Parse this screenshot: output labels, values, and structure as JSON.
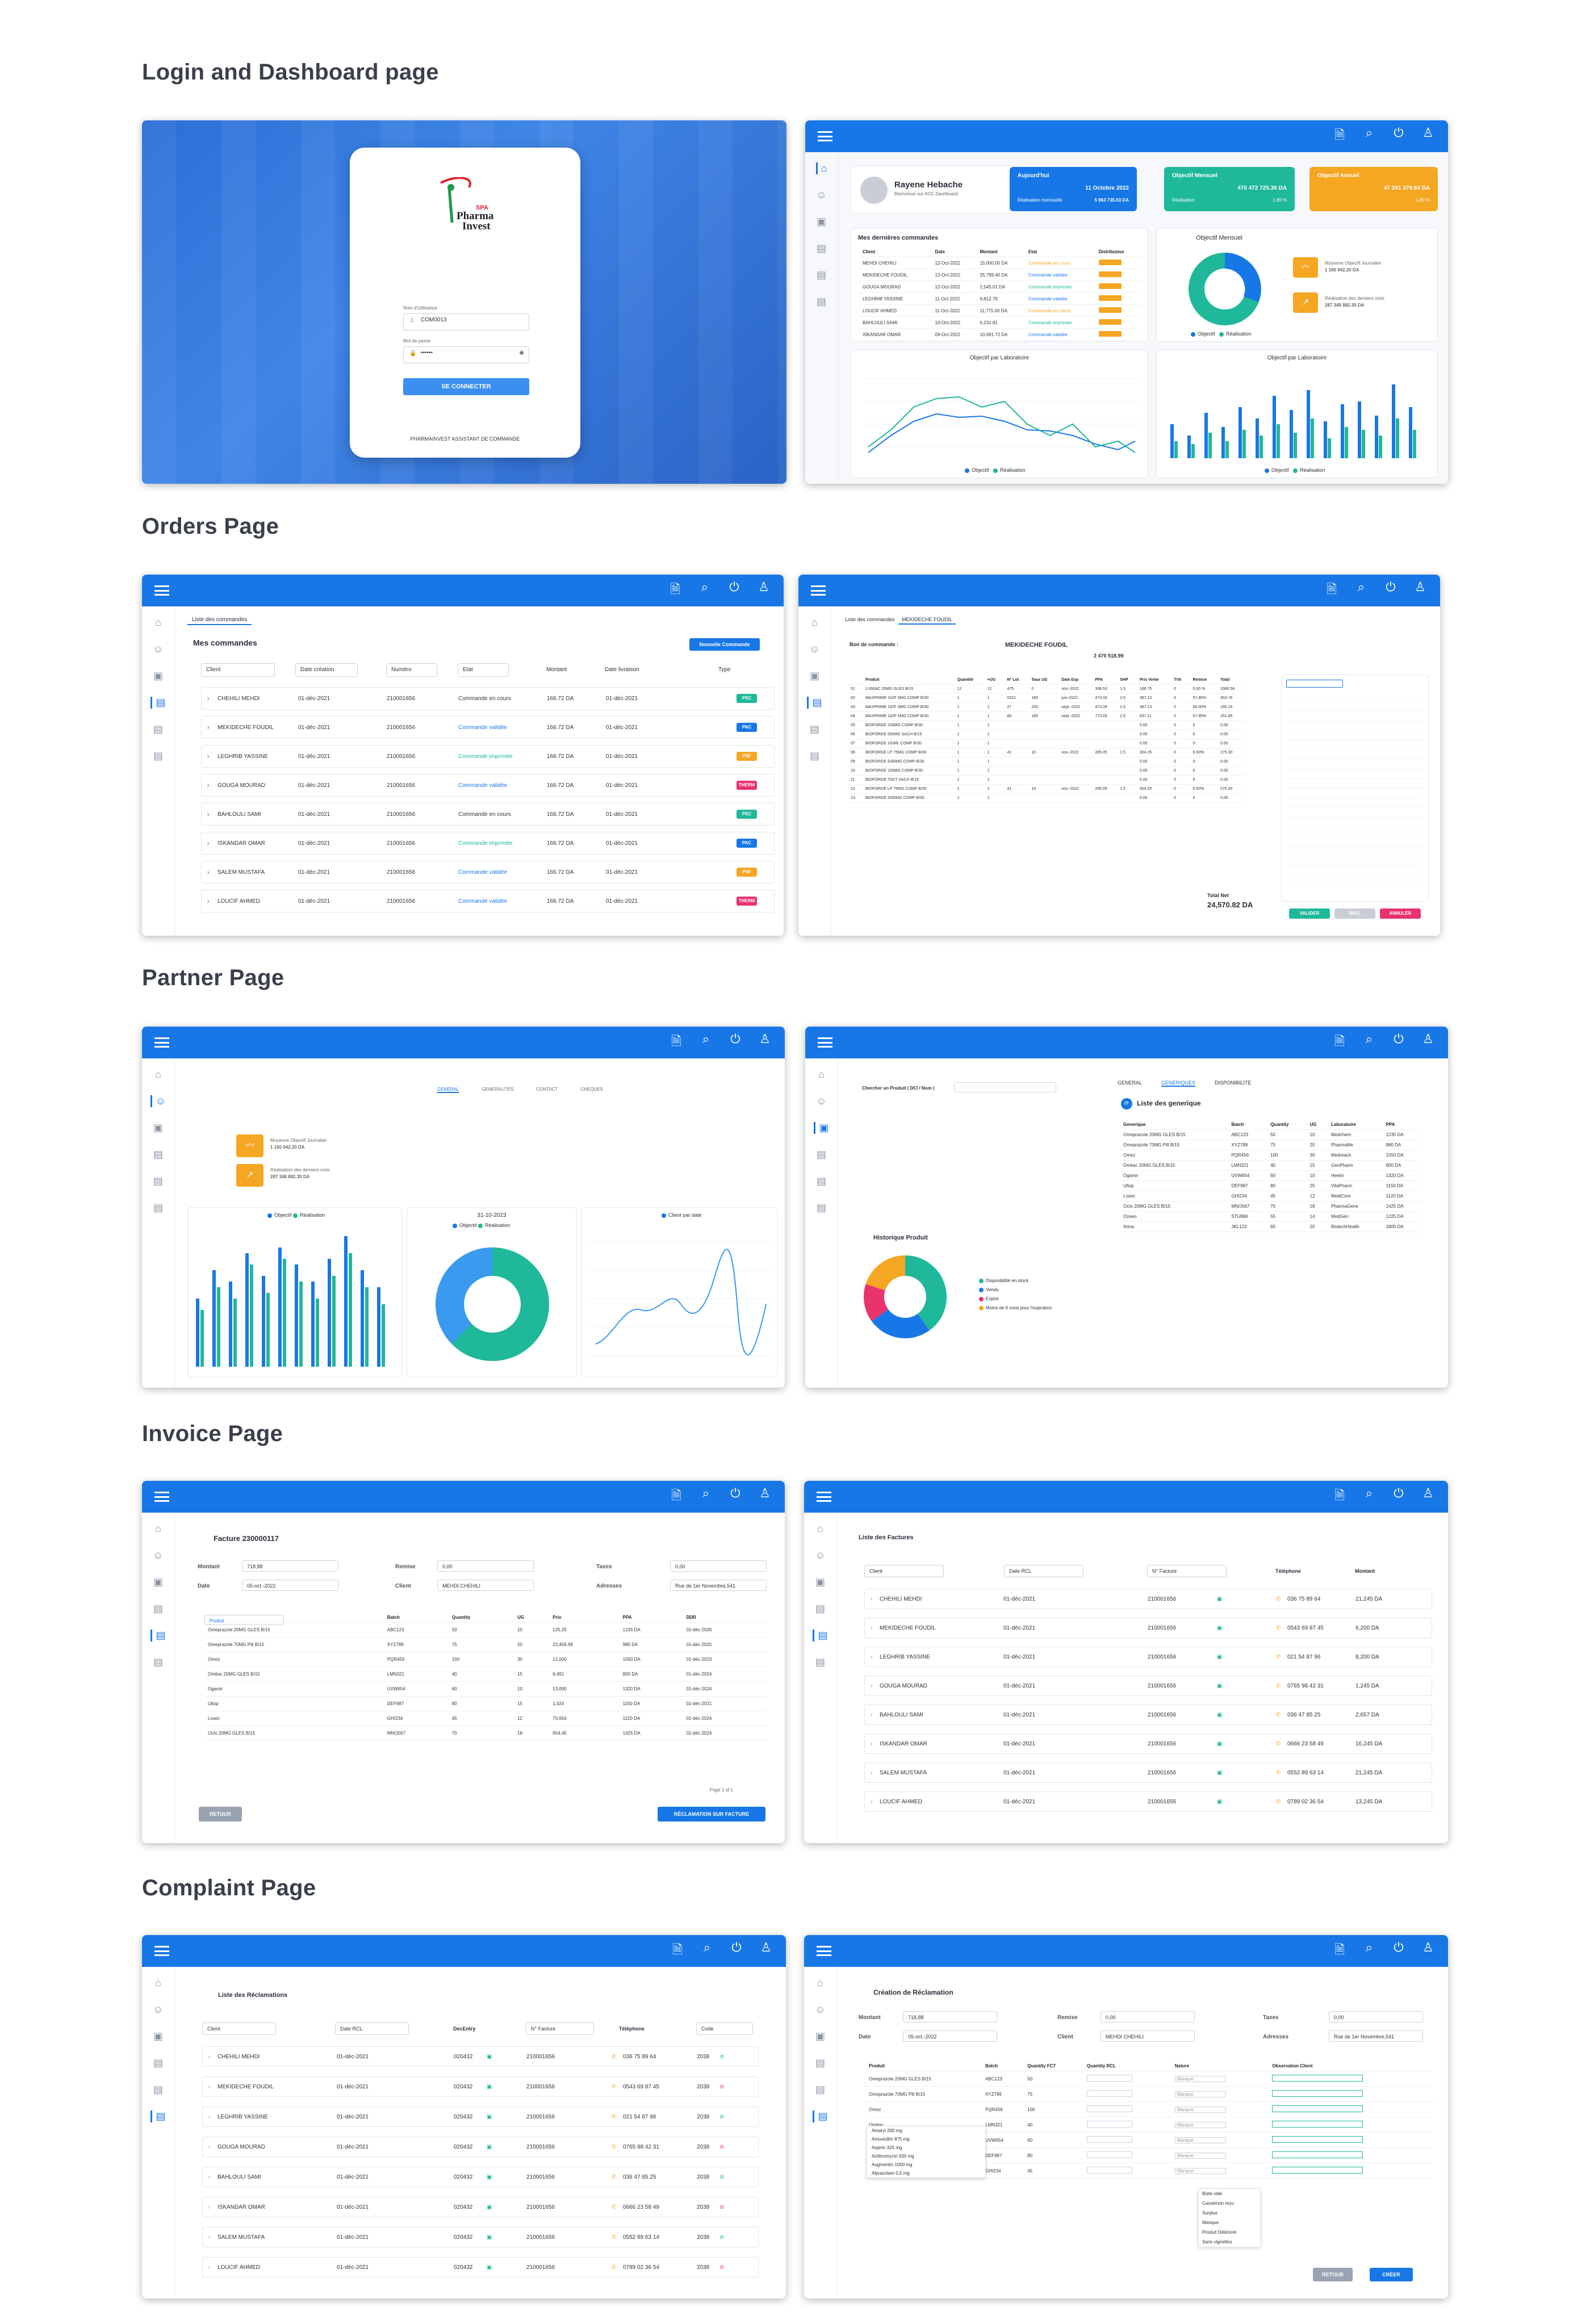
{
  "sections": {
    "login": "Login and Dashboard page",
    "orders": "Orders Page",
    "partner": "Partner Page",
    "invoice": "Invoice Page",
    "complaint": "Complaint Page"
  },
  "login": {
    "logo_top": "SPA",
    "logo_line1": "Pharma",
    "logo_line2": "Invest",
    "user_label": "Nom d'Utilisateur",
    "user_value": "COM0013",
    "pass_label": "Mot de passe",
    "pass_value": "••••••",
    "submit": "SE CONNECTER",
    "footer": "PHARMAINVEST ASSISTANT DE COMMANDE"
  },
  "dashboard": {
    "user_name": "Rayene Hebache",
    "welcome": "Bienvenue sur AOC Dashboard",
    "today_label": "Aujourd'hui",
    "today_date": "11 Octobre 2022",
    "today_sub": "Réalisation mensuelle",
    "today_value": "5 963 735.03 DA",
    "month_label": "Objectif Mensuel",
    "month_value": "470 472 725.36 DA",
    "month_sub": "Réalisation",
    "month_pct": "1.80 %",
    "annual_label": "Objectif Annuel",
    "annual_value": "47 241 379.64 DA",
    "annual_pct": "1.80 %",
    "orders_title": "Mes dernières commandes",
    "donut_title": "Objectif Mensuel",
    "line_title": "Objectif par Laboratoire",
    "bar_title": "Objectif par Laboratoire",
    "legend_obj": "Objectif",
    "legend_real": "Réalisation",
    "mini1": "Moyenne Objectif Journalier",
    "mini1_val": "1 160 942.20 DA",
    "mini2": "Réalisation des derniers mois",
    "mini2_val": "287 348 882.30 DA"
  },
  "orders_cols": [
    "Client",
    "Date",
    "Montant",
    "Etat",
    "Distributeur"
  ],
  "orders_rows": [
    {
      "client": "MEHDI CHEHILI",
      "date": "12-Oct-2022",
      "amount": "15,000.00 DA",
      "state": "Commande en cours",
      "color": "#f5a623"
    },
    {
      "client": "MEKIDECHE FOUDIL",
      "date": "12-Oct-2022",
      "amount": "25,799.40 DA",
      "state": "Commande validée",
      "color": "#1877e6"
    },
    {
      "client": "GOUGA MOURAD",
      "date": "12-Oct-2022",
      "amount": "2,545.01 DA",
      "state": "Commande imprimée",
      "color": "#1fb89a"
    },
    {
      "client": "LEGHRIB YASSINE",
      "date": "11-Oct-2022",
      "amount": "6,812.76",
      "state": "Commande validée",
      "color": "#1877e6"
    },
    {
      "client": "LOUCIF AHMED",
      "date": "11-Oct-2022",
      "amount": "11,775.00 DA",
      "state": "Commande en cours",
      "color": "#f5a623"
    },
    {
      "client": "BAHLOULI SAMI",
      "date": "10-Oct-2022",
      "amount": "6,231.81",
      "state": "Commande imprimée",
      "color": "#1fb89a"
    },
    {
      "client": "ISKANDAR OMAR",
      "date": "09-Oct-2022",
      "amount": "10,691.72 DA",
      "state": "Commande validée",
      "color": "#1877e6"
    }
  ],
  "orders_page": {
    "tab": "Liste des commandes",
    "title": "Mes commandes",
    "new_btn": "Nouvelle Commande",
    "f_client": "Client",
    "f_date": "Date création",
    "f_number": "Numéro",
    "f_state": "Etat",
    "h_amount": "Montant",
    "h_delivery": "Date livraison",
    "h_type": "Type"
  },
  "order_list": [
    {
      "name": "CHEHILI MEHDI",
      "date": "01-déc-2021",
      "num": "210001656",
      "state": "Commande en cours",
      "amount": "166.72 DA",
      "deliv": "01-déc-2021",
      "type": "PSC",
      "tcolor": "#1fb89a",
      "scolor": "#333"
    },
    {
      "name": "MEKIDECHE FOUDIL",
      "date": "01-déc-2021",
      "num": "210001656",
      "state": "Commande validée",
      "amount": "166.72 DA",
      "deliv": "01-déc-2021",
      "type": "PAC",
      "tcolor": "#1877e6",
      "scolor": "#1877e6"
    },
    {
      "name": "LEGHRIB YASSINE",
      "date": "01-déc-2021",
      "num": "210001656",
      "state": "Commande imprimée",
      "amount": "166.72 DA",
      "deliv": "01-déc-2021",
      "type": "PSF",
      "tcolor": "#f5a623",
      "scolor": "#1fb89a"
    },
    {
      "name": "GOUGA MOURAD",
      "date": "01-déc-2021",
      "num": "210001656",
      "state": "Commande validée",
      "amount": "166.72 DA",
      "deliv": "01-déc-2021",
      "type": "THERM",
      "tcolor": "#e8336d",
      "scolor": "#1877e6"
    },
    {
      "name": "BAHLOULI SAMI",
      "date": "01-déc-2021",
      "num": "210001656",
      "state": "Commande en cours",
      "amount": "166.72 DA",
      "deliv": "01-déc-2021",
      "type": "PSC",
      "tcolor": "#1fb89a",
      "scolor": "#333"
    },
    {
      "name": "ISKANDAR OMAR",
      "date": "01-déc-2021",
      "num": "210001656",
      "state": "Commande imprimée",
      "amount": "166.72 DA",
      "deliv": "01-déc-2021",
      "type": "PAC",
      "tcolor": "#1877e6",
      "scolor": "#1fb89a"
    },
    {
      "name": "SALEM MUSTAFA",
      "date": "01-déc-2021",
      "num": "210001656",
      "state": "Commande validée",
      "amount": "166.72 DA",
      "deliv": "01-déc-2021",
      "type": "PSF",
      "tcolor": "#f5a623",
      "scolor": "#1877e6"
    },
    {
      "name": "LOUCIF AHMED",
      "date": "01-déc-2021",
      "num": "210001656",
      "state": "Commande validée",
      "amount": "166.72 DA",
      "deliv": "01-déc-2021",
      "type": "THERM",
      "tcolor": "#e8336d",
      "scolor": "#1877e6"
    }
  ],
  "order_detail": {
    "tab1": "Liste des commandes",
    "tab2": "MEKIDECHE FOUDIL",
    "bon": "Bon de commande :",
    "client": "MEKIDECHE FOUDIL",
    "total_label": "Total Net",
    "total": "24,570.82 DA",
    "amount": "2 470 518.99",
    "btn_valider": "VALIDER",
    "btn_annuler": "ANNULER",
    "btn_null": "NULL",
    "cols": [
      "Produit",
      "Quantité",
      "+UG",
      "N° Lot",
      "Taux UG",
      "Date Exp",
      "PPA",
      "SHP",
      "Prix Vente",
      "TVA",
      "Remise",
      "Total"
    ],
    "rows": [
      [
        "LUMIAC 20MG GLES B/15",
        "12",
        "12",
        "475",
        "0",
        "nov.-2022",
        "338.53",
        "1.5",
        "186.75",
        "0",
        "0,00 %",
        "2080.58"
      ],
      [
        "MAXPRIME 1G/F 3MG COMP B/30",
        "1",
        "1",
        "0321",
        "180",
        "juin-2022",
        "473.04",
        "2.5",
        "387.13",
        "0",
        "57.85%",
        "453.76"
      ],
      [
        "MAXPRIME 1G/F 3MG COMP B/30",
        "1",
        "1",
        "27",
        "200",
        "sept.-2022",
        "473.04",
        "2.5",
        "387.13",
        "0",
        "60.00%",
        "155.16"
      ],
      [
        "MAXPRIME 1G/F 5MG COMP B/30",
        "1",
        "1",
        "80",
        "180",
        "sept.-2022",
        "773.03",
        "2.5",
        "637.11",
        "0",
        "57.85%",
        "251.95"
      ],
      [
        "BIOFORGE 100MG COMP B/30",
        "1",
        "1",
        "",
        "",
        "",
        "",
        "",
        "0.00",
        "0",
        "0",
        "0.00"
      ],
      [
        "BIOFORGE 500MG SACH B/15",
        "1",
        "1",
        "",
        "",
        "",
        "",
        "",
        "0.00",
        "0",
        "0",
        "0.00"
      ],
      [
        "BIOFORGE 1G/ML COMP B/30",
        "1",
        "1",
        "",
        "",
        "",
        "",
        "",
        "0.00",
        "0",
        "0",
        "0.00"
      ],
      [
        "BIOFORGE LP 75MG COMP B/30",
        "1",
        "1",
        "41",
        "10",
        "nov.-2022",
        "285.05",
        "1.5",
        "304.25",
        "0",
        "6.00%",
        "275.30"
      ],
      [
        "BIOFORGE S/80MG COMP B/30",
        "1",
        "1",
        "",
        "",
        "",
        "",
        "",
        "0.00",
        "0",
        "0",
        "0.00"
      ],
      [
        "BIOFORGE 100MG COMP B/30",
        "1",
        "1",
        "",
        "",
        "",
        "",
        "",
        "0.00",
        "0",
        "0",
        "0.00"
      ],
      [
        "BIOFORGE 75GT SACH B/15",
        "1",
        "1",
        "",
        "",
        "",
        "",
        "",
        "0.00",
        "0",
        "0",
        "0.00"
      ],
      [
        "BIOFORGE LP 75MG COMP B/30",
        "1",
        "1",
        "41",
        "10",
        "nov.-2022",
        "285.05",
        "1.5",
        "304.25",
        "0",
        "6.00%",
        "275.30"
      ],
      [
        "BIOFORGE S/80MG COMP B/30",
        "1",
        "1",
        "",
        "",
        "",
        "",
        "",
        "0.00",
        "0",
        "0",
        "0.00"
      ]
    ]
  },
  "partner": {
    "search": "Chercher un Produit ( DCI / Nom )",
    "tab_general": "GENERAL",
    "tab_generic": "GENERIQUES",
    "tab_dispo": "DISPONIBILITE",
    "generic_title": "Liste des generique",
    "history_title": "Historique Produit",
    "date": "31-10-2023",
    "leg_stock": "Disponibilité en stock",
    "leg_sold": "Vendu",
    "leg_exp": "Expiré",
    "leg_soon": "Moins de 6 mois pour l'expiration",
    "legend_obj": "Objectif",
    "legend_real": "Réalisation",
    "legend_client": "Client par date",
    "mini1": "Moyenne Objectif Journalier",
    "mini1_val": "1 160 942.20 DA",
    "mini2": "Réalisation des derniers mois",
    "mini2_val": "287 348 882.30 DA",
    "tabs": [
      "GENERAL",
      "GENERALITES",
      "CONTACT",
      "CHEQUES"
    ],
    "generic_cols": [
      "Generique",
      "Batch",
      "Quantity",
      "UG",
      "Laboratoire",
      "PPA"
    ],
    "generics": [
      [
        "Omeprazole 20MG GLES B/15",
        "ABC123",
        "50",
        "10",
        "Medchem",
        "1235 DA"
      ],
      [
        "Omeprazole 70MG Pill B/15",
        "XYZ789",
        "75",
        "20",
        "PharmaMe",
        "980 DA"
      ],
      [
        "Omez",
        "PQR456",
        "100",
        "30",
        "Medreach",
        "1050 DA"
      ],
      [
        "Omitac 20MG GLES B/15",
        "LMN321",
        "40",
        "15",
        "GenPharm",
        "800 DA"
      ],
      [
        "Ogamir",
        "UVW654",
        "60",
        "10",
        "Heelin",
        "1320 DA"
      ],
      [
        "Ultop",
        "DEF987",
        "80",
        "25",
        "VitaPharm",
        "1150 DA"
      ],
      [
        "Losec",
        "GHI234",
        "45",
        "12",
        "MediCore",
        "1120 DA"
      ],
      [
        "Octo 20MG GLES B/15",
        "MNO567",
        "70",
        "18",
        "PharmaGene",
        "1425 DA"
      ],
      [
        "Ozeeo",
        "STU890",
        "55",
        "14",
        "MedGen",
        "1225 DA"
      ],
      [
        "Arina",
        "JKL123",
        "65",
        "20",
        "BiotechHealth",
        "1805 DA"
      ]
    ],
    "history": [
      {
        "label": "Disponibilité en stock",
        "value": 40,
        "color": "#1fb89a"
      },
      {
        "label": "Vendu",
        "value": 25,
        "color": "#1877e6"
      },
      {
        "label": "Expiré",
        "value": 15,
        "color": "#e8336d"
      },
      {
        "label": "Moins de 6 mois pour l'expiration",
        "value": 20,
        "color": "#f5a623"
      }
    ]
  },
  "invoice": {
    "title": "Facture 230000117",
    "montant_l": "Montant",
    "montant": "718,88",
    "remise_l": "Remise",
    "remise": "0,00",
    "taxes_l": "Taxes",
    "taxes": "0,00",
    "date_l": "Date",
    "date": "05-oct.-2022",
    "client_l": "Client",
    "client": "MEHDI CHEHILI",
    "adr_l": "Adresses",
    "adr": "Rue de 1er Novembre,541",
    "search": "Produit",
    "back": "RETOUR",
    "claim": "RÉCLAMATION SUR FACTURE",
    "list_title": "Liste des Factures",
    "f_client": "Client",
    "f_date": "Date RCL",
    "f_fact": "N° Facture",
    "h_tel": "Téléphone",
    "h_montant": "Montant",
    "page": "Page  1  of 1",
    "cols": [
      "Batch",
      "Quantity",
      "UG",
      "Prix",
      "PPA",
      "DDR"
    ],
    "items": [
      [
        "Omeprazole 20MG GLES B/15",
        "ABC123",
        "50",
        "10",
        "125.25",
        "1235 DA",
        "01-déc-2026"
      ],
      [
        "Omeprazole 70MG Pill B/15",
        "XYZ789",
        "75",
        "20",
        "23,456.98",
        "980 DA",
        "01-déc-2025"
      ],
      [
        "Omez",
        "PQR456",
        "100",
        "30",
        "12,000",
        "1050 DA",
        "01-déc-2023"
      ],
      [
        "Omitac 20MG GLES B/15",
        "LMN321",
        "40",
        "15",
        "6,491",
        "800 DA",
        "01-déc-2024"
      ],
      [
        "Ogamir",
        "UVW654",
        "60",
        "10",
        "13,000",
        "1320 DA",
        "01-déc-2024"
      ],
      [
        "Ultop",
        "DEF987",
        "80",
        "15",
        "1,024",
        "1150 DA",
        "01-déc-2021"
      ],
      [
        "Losec",
        "GHI234",
        "45",
        "12",
        "70,654",
        "1120 DA",
        "01-déc-2024"
      ],
      [
        "Octo 20MG GLES B/15",
        "MNO567",
        "70",
        "18",
        "654.45",
        "1425 DA",
        "01-déc-2024"
      ]
    ],
    "list": [
      {
        "name": "CHEHILI MEHDI",
        "date": "01-déc-2021",
        "num": "210001656",
        "tel": "036 75 89 64",
        "amount": "21,245 DA"
      },
      {
        "name": "MEKIDECHE FOUDIL",
        "date": "01-déc-2021",
        "num": "210001656",
        "tel": "0543 69 87 45",
        "amount": "6,200 DA"
      },
      {
        "name": "LEGHRIB YASSINE",
        "date": "01-déc-2021",
        "num": "210001656",
        "tel": "021 54 87 96",
        "amount": "8,200 DA"
      },
      {
        "name": "GOUGA MOURAD",
        "date": "01-déc-2021",
        "num": "210001656",
        "tel": "0765 98 42 31",
        "amount": "1,245 DA"
      },
      {
        "name": "BAHLOULI SAMI",
        "date": "01-déc-2021",
        "num": "210001656",
        "tel": "036 47 85 25",
        "amount": "2,657 DA"
      },
      {
        "name": "ISKANDAR OMAR",
        "date": "01-déc-2021",
        "num": "210001656",
        "tel": "0666 23 58 49",
        "amount": "16,245 DA"
      },
      {
        "name": "SALEM MUSTAFA",
        "date": "01-déc-2021",
        "num": "210001656",
        "tel": "0552 89 63 14",
        "amount": "21,245 DA"
      },
      {
        "name": "LOUCIF AHMED",
        "date": "01-déc-2021",
        "num": "210001656",
        "tel": "0789 02 36 54",
        "amount": "13,245 DA"
      }
    ]
  },
  "complaint": {
    "list_title": "Liste des Réclamations",
    "f_client": "Client",
    "f_date": "Date RCL",
    "h_dec": "DecEntry",
    "f_fact": "N° Facture",
    "h_tel": "Téléphone",
    "h_code": "Code",
    "create_title": "Création de Réclamation",
    "back": "RETOUR",
    "create": "CRÉER",
    "montant": "718,88",
    "remise": "0,00",
    "taxes": "0,00",
    "date": "05-oct.-2022",
    "client": "MEHDI CHEHILI",
    "adr": "Rue de 1er Novembre,541",
    "cols": [
      "Produit",
      "Batch",
      "Quantity FCT",
      "Quantity RCL",
      "Nature",
      "Observation Client"
    ],
    "nature_placeholder": "Manque",
    "list": [
      {
        "name": "CHEHILI MEHDI",
        "date": "01-déc-2021",
        "dec": "020432",
        "num": "210001656",
        "tel": "036 75 89 64",
        "code": "2038"
      },
      {
        "name": "MEKIDECHE FOUDIL",
        "date": "01-déc-2021",
        "dec": "020432",
        "num": "210001656",
        "tel": "0543 69 87 45",
        "code": "2038"
      },
      {
        "name": "LEGHRIB YASSINE",
        "date": "01-déc-2021",
        "dec": "020432",
        "num": "210001656",
        "tel": "021 54 87 96",
        "code": "2038"
      },
      {
        "name": "GOUGA MOURAD",
        "date": "01-déc-2021",
        "dec": "020432",
        "num": "210001656",
        "tel": "0765 98 42 31",
        "code": "2038"
      },
      {
        "name": "BAHLOULI SAMI",
        "date": "01-déc-2021",
        "dec": "020432",
        "num": "210001656",
        "tel": "036 47 85 25",
        "code": "2038"
      },
      {
        "name": "ISKANDAR OMAR",
        "date": "01-déc-2021",
        "dec": "020432",
        "num": "210001656",
        "tel": "0666 23 58 49",
        "code": "2038"
      },
      {
        "name": "SALEM MUSTAFA",
        "date": "01-déc-2021",
        "dec": "020432",
        "num": "210001656",
        "tel": "0552 89 63 14",
        "code": "2038"
      },
      {
        "name": "LOUCIF AHMED",
        "date": "01-déc-2021",
        "dec": "020432",
        "num": "210001656",
        "tel": "0789 02 36 54",
        "code": "2038"
      }
    ],
    "items": [
      [
        "Omeprazole 20MG GLES B/15",
        "ABC123",
        "50"
      ],
      [
        "Omeprazole 70MG Pill B/15",
        "XYZ789",
        "75"
      ],
      [
        "Omez",
        "PQR456",
        "100"
      ],
      [
        "Omitac",
        "LMN321",
        "40"
      ],
      [
        "Ogamir",
        "UVW654",
        "60"
      ],
      [
        "Ultop",
        "DEF987",
        "80"
      ],
      [
        "Losec",
        "GHI234",
        "45"
      ]
    ],
    "dropdown": [
      "Amaryl 200 mg",
      "Amoxicillin 875 mg",
      "Aspirin 325 mg",
      "Azithromycin 500 mg",
      "Augmentin 1000 mg",
      "Alprazolam 0.5 mg"
    ],
    "natures": [
      "Boite vide",
      "Cassé/non reçu",
      "Surplus",
      "Manque",
      "Produit Détérioré",
      "Sans vignettes"
    ]
  },
  "colors": {
    "primary": "#1877e6",
    "green": "#1fb89a",
    "orange": "#f5a623",
    "pink": "#e8336d"
  },
  "icons": [
    "menu-icon",
    "document-icon",
    "search-icon",
    "power-icon",
    "user-icon",
    "home-icon",
    "users-icon",
    "box-icon",
    "file-icon"
  ]
}
